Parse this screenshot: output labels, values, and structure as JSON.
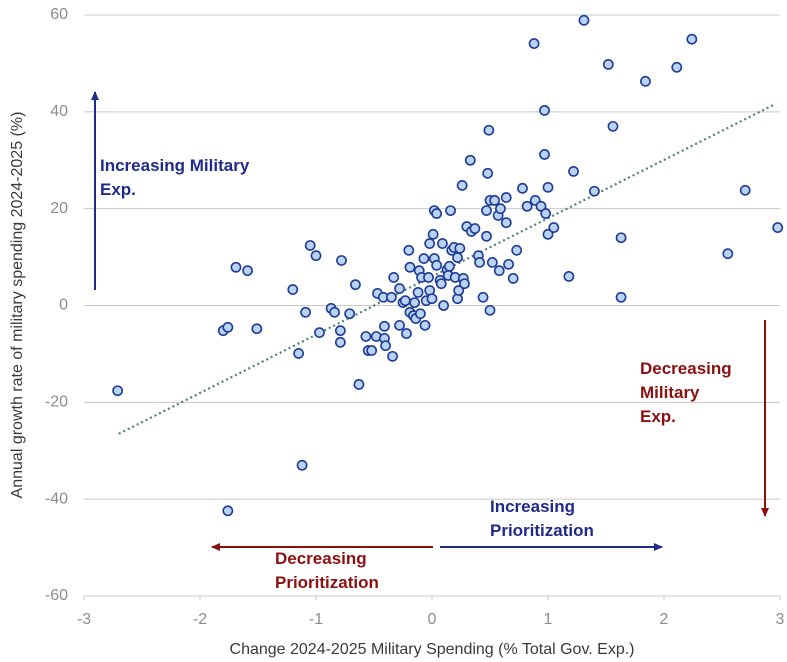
{
  "chart_data": {
    "type": "scatter",
    "x_label": "Change 2024-2025 Military Spending (% Total Gov. Exp.)",
    "y_label": "Annual growth rate of military spending 2024-2025 (%)",
    "xlim": [
      -3,
      3
    ],
    "ylim": [
      -60,
      60
    ],
    "xticks": [
      -3,
      -2,
      -1,
      0,
      1,
      2,
      3
    ],
    "yticks": [
      -60,
      -40,
      -20,
      0,
      20,
      40,
      60
    ],
    "grid": true,
    "series": [
      {
        "color": "#b8d3f4",
        "edge_color": "#1f3a93",
        "x": [
          -2.71,
          -1.76,
          -1.12,
          -1.8,
          -1.76,
          -1.51,
          -1.69,
          -1.59,
          -1.2,
          -1.15,
          -1.09,
          -1.05,
          -1.0,
          -0.97,
          -0.87,
          -0.84,
          -0.78,
          -0.79,
          -0.79,
          -0.71,
          -0.66,
          -0.63,
          -0.57,
          -0.55,
          -0.52,
          -0.47,
          -0.48,
          -0.42,
          -0.41,
          -0.41,
          -0.4,
          -0.34,
          -0.35,
          -0.33,
          -0.28,
          -0.25,
          -0.23,
          -0.22,
          -0.2,
          -0.19,
          -0.19,
          -0.16,
          -0.15,
          -0.14,
          -0.12,
          -0.11,
          -0.1,
          -0.09,
          -0.07,
          -0.06,
          -0.05,
          -0.03,
          -0.02,
          -0.02,
          0.0,
          0.01,
          0.02,
          0.02,
          0.04,
          0.04,
          0.07,
          0.08,
          0.09,
          0.1,
          0.13,
          0.14,
          0.15,
          0.16,
          0.17,
          0.19,
          0.2,
          0.22,
          0.22,
          0.23,
          0.24,
          0.26,
          0.27,
          0.28,
          0.3,
          0.33,
          0.34,
          0.37,
          0.4,
          0.41,
          0.44,
          0.47,
          0.47,
          0.48,
          0.49,
          0.5,
          0.5,
          0.52,
          0.54,
          0.57,
          0.58,
          0.59,
          0.64,
          0.64,
          0.66,
          0.7,
          0.73,
          0.78,
          0.82,
          0.88,
          0.89,
          0.94,
          0.97,
          0.97,
          0.98,
          1.0,
          1.0,
          1.05,
          1.18,
          1.22,
          1.31,
          1.4,
          1.52,
          1.56,
          1.63,
          1.63,
          1.84,
          2.11,
          2.24,
          2.55,
          2.7,
          2.98,
          -0.28
        ],
        "values": [
          -17.6,
          -42.4,
          -33,
          -5.2,
          -4.5,
          -4.8,
          7.9,
          7.2,
          3.3,
          -9.9,
          -1.4,
          12.4,
          10.3,
          -5.6,
          -0.6,
          -1.4,
          9.3,
          -5.2,
          -7.6,
          -1.7,
          4.3,
          -16.3,
          -6.4,
          -9.3,
          -9.3,
          2.5,
          -6.4,
          1.7,
          -4.3,
          -6.8,
          -8.3,
          -10.5,
          1.7,
          5.8,
          -4.1,
          0.6,
          1.0,
          -5.8,
          11.4,
          7.9,
          -1.4,
          -2.1,
          0.6,
          -2.7,
          2.7,
          7.2,
          -1.7,
          5.8,
          9.7,
          -4.1,
          1.0,
          5.8,
          12.8,
          3.1,
          1.4,
          14.7,
          9.7,
          19.6,
          19.0,
          8.3,
          5.2,
          4.5,
          12.8,
          0.0,
          7.4,
          6.2,
          8.1,
          19.6,
          11.4,
          12.0,
          5.8,
          9.9,
          1.4,
          3.1,
          11.8,
          24.8,
          5.6,
          4.5,
          16.3,
          30.0,
          15.3,
          15.9,
          10.3,
          8.9,
          1.7,
          19.6,
          14.3,
          27.3,
          36.2,
          -1.0,
          21.7,
          8.9,
          21.7,
          18.6,
          7.2,
          20.0,
          17.1,
          22.3,
          8.5,
          5.6,
          11.4,
          24.2,
          20.5,
          54.1,
          21.7,
          20.5,
          40.3,
          31.2,
          19.0,
          14.7,
          24.4,
          16.1,
          6.0,
          27.7,
          58.9,
          23.6,
          49.8,
          37.0,
          1.7,
          14.0,
          46.3,
          49.2,
          55.0,
          10.7,
          23.8,
          16.1,
          3.5
        ]
      }
    ],
    "trendline": {
      "color": "#4f7f78",
      "x": [
        -2.7,
        2.95
      ],
      "y": [
        -26.5,
        41.5
      ]
    },
    "annotations": [
      {
        "lines": [
          "Increasing Military",
          "Exp."
        ],
        "color": "#1f2a8c"
      },
      {
        "lines": [
          "Decreasing",
          "Military",
          "Exp."
        ],
        "color": "#8b1010"
      },
      {
        "lines": [
          "Increasing",
          "Prioritization"
        ],
        "color": "#1f2a8c"
      },
      {
        "lines": [
          "Decreasing",
          "Prioritization"
        ],
        "color": "#8b1010"
      }
    ]
  }
}
